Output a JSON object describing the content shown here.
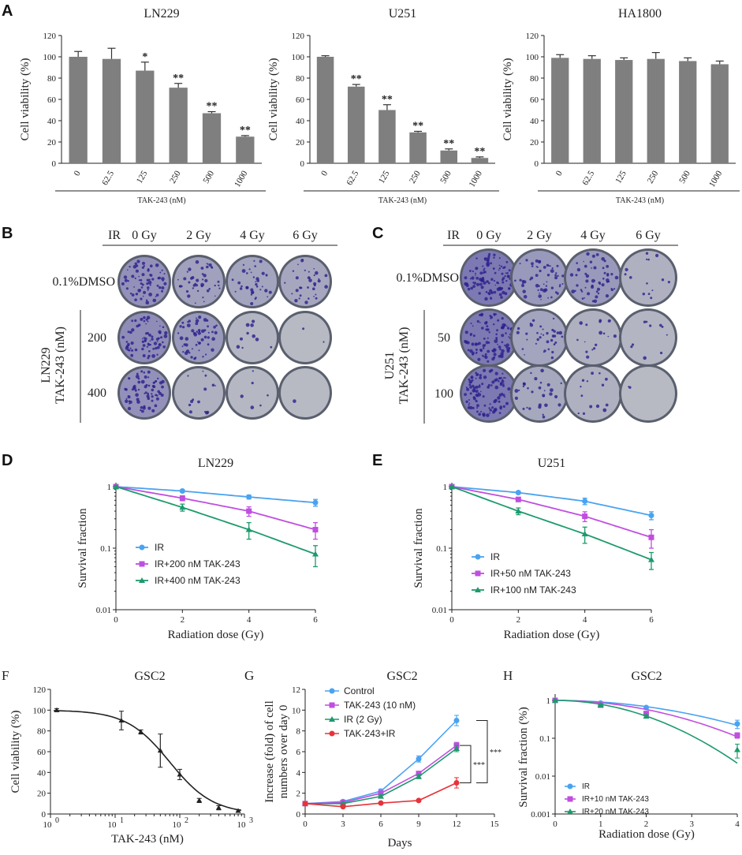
{
  "panels": {
    "A": {
      "label": "A",
      "charts": [
        {
          "title": "LN229",
          "ylabel": "Cell viability (%)",
          "xlabel": "TAK-243 (nM)",
          "ymax": 120,
          "yticks": [
            "0",
            "20",
            "40",
            "60",
            "80",
            "100",
            "120"
          ],
          "categories": [
            "0",
            "62.5",
            "125",
            "250",
            "500",
            "1000"
          ],
          "values": [
            100,
            98,
            87,
            71,
            47,
            25
          ],
          "errors": [
            5,
            10,
            8,
            4,
            1.5,
            1
          ],
          "stars": [
            "",
            "",
            "*",
            "**",
            "**",
            "**"
          ]
        },
        {
          "title": "U251",
          "ylabel": "Cell viability (%)",
          "xlabel": "TAK-243 (nM)",
          "ymax": 120,
          "yticks": [
            "0",
            "20",
            "40",
            "60",
            "80",
            "100",
            "120"
          ],
          "categories": [
            "0",
            "62.5",
            "125",
            "250",
            "500",
            "1000"
          ],
          "values": [
            100,
            72,
            50,
            29,
            12,
            5
          ],
          "errors": [
            1,
            2,
            5,
            1,
            1.5,
            1
          ],
          "stars": [
            "",
            "**",
            "**",
            "**",
            "**",
            "**"
          ]
        },
        {
          "title": "HA1800",
          "ylabel": "Cell viability (%)",
          "xlabel": "TAK-243 (nM)",
          "ymax": 120,
          "yticks": [
            "0",
            "20",
            "40",
            "60",
            "80",
            "100",
            "120"
          ],
          "categories": [
            "0",
            "62.5",
            "125",
            "250",
            "500",
            "1000"
          ],
          "values": [
            99,
            98,
            97,
            98,
            96,
            93
          ],
          "errors": [
            3,
            3,
            2,
            6,
            3,
            3
          ],
          "stars": [
            "",
            "",
            "",
            "",
            "",
            ""
          ]
        }
      ]
    },
    "B": {
      "label": "B",
      "ir": "IR",
      "doses": [
        "0 Gy",
        "2 Gy",
        "4 Gy",
        "6 Gy"
      ],
      "control": "0.1%DMSO",
      "group_line1": "LN229",
      "group_line2": "TAK-243 (nM)",
      "rows": [
        "200",
        "400"
      ],
      "density": [
        [
          0.55,
          0.35,
          0.3,
          0.28
        ],
        [
          0.6,
          0.45,
          0.08,
          0.02
        ],
        [
          0.55,
          0.12,
          0.05,
          0.01
        ]
      ]
    },
    "C": {
      "label": "C",
      "ir": "IR",
      "doses": [
        "0 Gy",
        "2 Gy",
        "4 Gy",
        "6 Gy"
      ],
      "control": "0.1%DMSO",
      "group_line1": "U251",
      "group_line2": "TAK-243 (nM)",
      "rows": [
        "50",
        "100"
      ],
      "density": [
        [
          0.85,
          0.45,
          0.45,
          0.12
        ],
        [
          0.85,
          0.3,
          0.15,
          0.08
        ],
        [
          0.85,
          0.25,
          0.12,
          0.02
        ]
      ]
    },
    "D": {
      "label": "D",
      "title": "LN229",
      "ylabel": "Survival fraction",
      "xlabel": "Radiation dose (Gy)",
      "yticks": [
        "1",
        "0.1",
        "0.01"
      ],
      "xticks": [
        "0",
        "2",
        "4",
        "6"
      ],
      "series": [
        {
          "name": "IR",
          "color": "#4aa3f0",
          "marker": "circle",
          "x": [
            0,
            2,
            4,
            6
          ],
          "y": [
            1,
            0.85,
            0.68,
            0.55
          ],
          "err": [
            0.04,
            0.04,
            0.05,
            0.07
          ]
        },
        {
          "name": "IR+200 nM TAK-243",
          "color": "#c04ee0",
          "marker": "square",
          "x": [
            0,
            2,
            4,
            6
          ],
          "y": [
            1,
            0.65,
            0.4,
            0.2
          ],
          "err": [
            0.04,
            0.06,
            0.07,
            0.06
          ]
        },
        {
          "name": "IR+400 nM TAK-243",
          "color": "#1d9a6c",
          "marker": "triangle",
          "x": [
            0,
            2,
            4,
            6
          ],
          "y": [
            1,
            0.46,
            0.2,
            0.08
          ],
          "err": [
            0.04,
            0.06,
            0.06,
            0.03
          ]
        }
      ]
    },
    "E": {
      "label": "E",
      "title": "U251",
      "ylabel": "Survival fraction",
      "xlabel": "Radiation dose (Gy)",
      "yticks": [
        "1",
        "0.1",
        "0.01"
      ],
      "xticks": [
        "0",
        "2",
        "4",
        "6"
      ],
      "series": [
        {
          "name": "IR",
          "color": "#4aa3f0",
          "marker": "circle",
          "x": [
            0,
            2,
            4,
            6
          ],
          "y": [
            1,
            0.8,
            0.58,
            0.34
          ],
          "err": [
            0.03,
            0.04,
            0.07,
            0.05
          ]
        },
        {
          "name": "IR+50 nM TAK-243",
          "color": "#c04ee0",
          "marker": "square",
          "x": [
            0,
            2,
            4,
            6
          ],
          "y": [
            1,
            0.62,
            0.33,
            0.15
          ],
          "err": [
            0.03,
            0.05,
            0.06,
            0.05
          ]
        },
        {
          "name": "IR+100 nM TAK-243",
          "color": "#1d9a6c",
          "marker": "triangle",
          "x": [
            0,
            2,
            4,
            6
          ],
          "y": [
            1,
            0.4,
            0.17,
            0.065
          ],
          "err": [
            0.03,
            0.05,
            0.05,
            0.02
          ]
        }
      ]
    },
    "F": {
      "label": "F",
      "title": "GSC2",
      "ylabel": "Cell viability (%)",
      "xlabel": "TAK-243 (nM)",
      "yticks": [
        "0",
        "20",
        "40",
        "60",
        "80",
        "100",
        "120"
      ],
      "xticks": [
        "10",
        "10",
        "10",
        "10"
      ],
      "xexp": [
        "0",
        "1",
        "2",
        "3"
      ],
      "points": [
        {
          "x": 1.25,
          "y": 100,
          "e": 1.5
        },
        {
          "x": 12.5,
          "y": 90,
          "e": 9
        },
        {
          "x": 25,
          "y": 79,
          "e": 2
        },
        {
          "x": 50,
          "y": 61,
          "e": 16
        },
        {
          "x": 100,
          "y": 38,
          "e": 5
        },
        {
          "x": 200,
          "y": 13,
          "e": 2
        },
        {
          "x": 400,
          "y": 6,
          "e": 2
        },
        {
          "x": 800,
          "y": 3,
          "e": 1
        }
      ],
      "ic50": 70
    },
    "G": {
      "label": "G",
      "title": "GSC2",
      "ylabel1": "Increase (fold) of cell",
      "ylabel2": "numbers over day 0",
      "xlabel": "Days",
      "yticks": [
        "0",
        "2",
        "4",
        "6",
        "8",
        "10",
        "12"
      ],
      "xticks": [
        "0",
        "3",
        "6",
        "9",
        "12",
        "15"
      ],
      "series": [
        {
          "name": "Control",
          "color": "#4aa3f0",
          "x": [
            0,
            3,
            6,
            9,
            12
          ],
          "y": [
            1,
            1.2,
            2.2,
            5.3,
            9
          ],
          "err": [
            0.1,
            0.1,
            0.2,
            0.3,
            0.5
          ]
        },
        {
          "name": "TAK-243 (10 nM)",
          "color": "#c04ee0",
          "x": [
            0,
            3,
            6,
            9,
            12
          ],
          "y": [
            1,
            1.1,
            2.0,
            3.9,
            6.6
          ],
          "err": [
            0.1,
            0.1,
            0.15,
            0.2,
            0.3
          ]
        },
        {
          "name": "IR (2 Gy)",
          "color": "#1d9a6c",
          "x": [
            0,
            3,
            6,
            9,
            12
          ],
          "y": [
            1,
            1.0,
            1.7,
            3.6,
            6.3
          ],
          "err": [
            0.1,
            0.1,
            0.15,
            0.2,
            0.3
          ]
        },
        {
          "name": "TAK-243+IR",
          "color": "#e8323a",
          "x": [
            0,
            3,
            6,
            9,
            12
          ],
          "y": [
            1,
            0.7,
            1.05,
            1.3,
            3.0
          ],
          "err": [
            0.1,
            0.05,
            0.1,
            0.1,
            0.5
          ]
        }
      ],
      "sig": [
        "***",
        "***"
      ]
    },
    "H": {
      "label": "H",
      "title": "GSC2",
      "ylabel": "Survival fraction (%)",
      "xlabel": "Radiation dose (Gy)",
      "yticks": [
        "1",
        "0.1",
        "0.01",
        "0.001"
      ],
      "xticks": [
        "0",
        "1",
        "2",
        "3",
        "4"
      ],
      "series": [
        {
          "name": "IR",
          "color": "#4aa3f0",
          "x": [
            0,
            1,
            2,
            4
          ],
          "y": [
            1,
            0.85,
            0.65,
            0.24
          ],
          "err": [
            0.05,
            0.05,
            0.05,
            0.06
          ]
        },
        {
          "name": "IR+10 nM TAK-243",
          "color": "#c04ee0",
          "x": [
            0,
            1,
            2,
            4
          ],
          "y": [
            1,
            0.75,
            0.45,
            0.12
          ],
          "err": [
            0.05,
            0.05,
            0.05,
            0.02
          ]
        },
        {
          "name": "IR+20 nM TAK-243",
          "color": "#1d9a6c",
          "x": [
            0,
            1,
            2,
            4
          ],
          "y": [
            1,
            0.75,
            0.38,
            0.05
          ],
          "err": [
            0.05,
            0.05,
            0.04,
            0.02
          ]
        }
      ],
      "fit_end": [
        0.22,
        0.11,
        0.022
      ]
    }
  }
}
